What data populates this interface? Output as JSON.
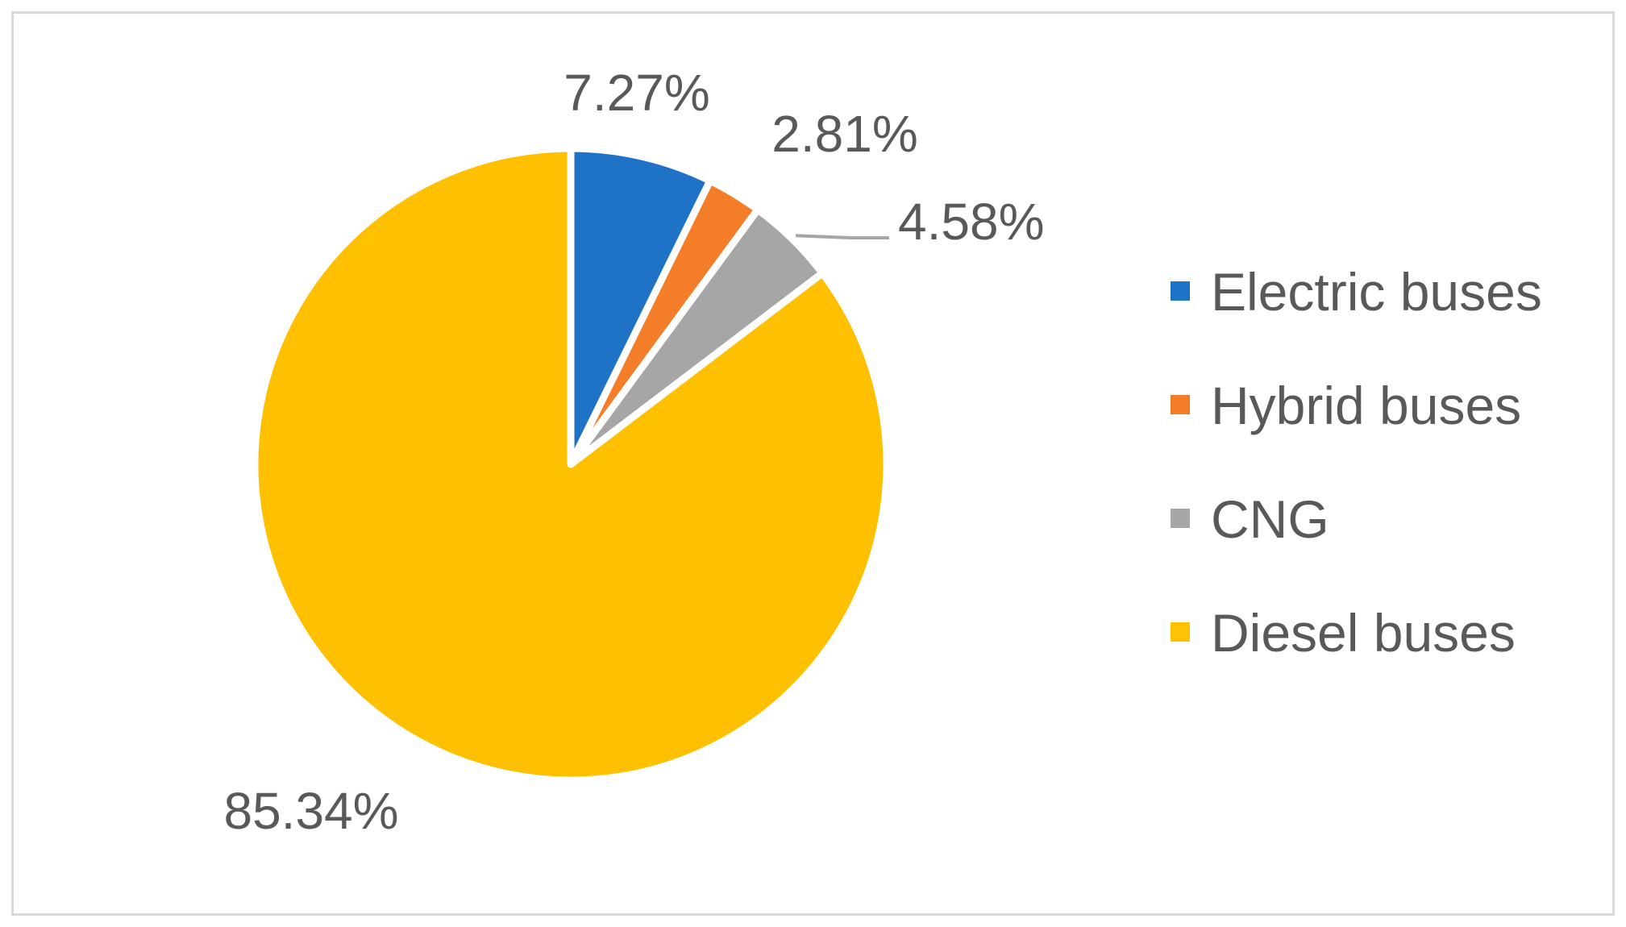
{
  "chart_data": {
    "type": "pie",
    "title": "",
    "start_angle_deg": 0,
    "direction": "clockwise",
    "legend_position": "right",
    "series": [
      {
        "name": "",
        "slices": [
          {
            "label": "Electric buses",
            "value": 7.27,
            "display": "7.27%",
            "color": "#1f73c6"
          },
          {
            "label": "Hybrid buses",
            "value": 2.81,
            "display": "2.81%",
            "color": "#f47d2a"
          },
          {
            "label": "CNG",
            "value": 4.58,
            "display": "4.58%",
            "color": "#a6a6a6"
          },
          {
            "label": "Diesel buses",
            "value": 85.34,
            "display": "85.34%",
            "color": "#fec000"
          }
        ]
      }
    ],
    "legend": [
      "Electric buses",
      "Hybrid buses",
      "CNG",
      "Diesel buses"
    ]
  }
}
